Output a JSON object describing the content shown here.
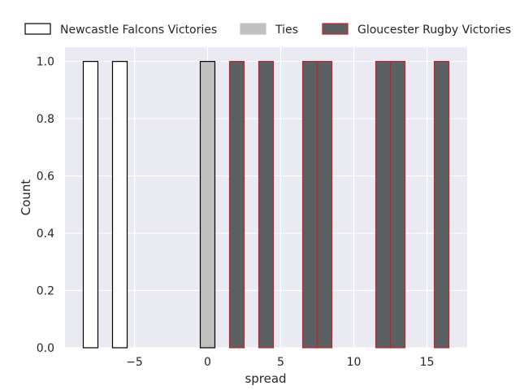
{
  "chart_data": {
    "type": "bar",
    "xlabel": "spread",
    "ylabel": "Count",
    "xlim": [
      -9.75,
      17.75
    ],
    "ylim": [
      0,
      1.05
    ],
    "x_ticks": [
      -5,
      0,
      5,
      10,
      15
    ],
    "x_tick_labels": [
      "−5",
      "0",
      "5",
      "10",
      "15"
    ],
    "y_ticks": [
      0.0,
      0.2,
      0.4,
      0.6,
      0.8,
      1.0
    ],
    "y_tick_labels": [
      "0.0",
      "0.2",
      "0.4",
      "0.6",
      "0.8",
      "1.0"
    ],
    "grid": true,
    "legend_position": "top",
    "bar_width": 1,
    "series": [
      {
        "name": "Newcastle Falcons Victories",
        "fill": "#ffffff",
        "edge": "#000000",
        "x": [
          -8,
          -6
        ],
        "values": [
          1,
          1
        ]
      },
      {
        "name": "Ties",
        "fill": "#c0c0c0",
        "edge": "#000000",
        "x": [
          0
        ],
        "values": [
          1
        ]
      },
      {
        "name": "Gloucester Rugby Victories",
        "fill": "#5b6163",
        "edge": "#c8202a",
        "x": [
          2,
          4,
          7,
          8,
          12,
          13,
          16
        ],
        "values": [
          1,
          1,
          1,
          1,
          1,
          1,
          1
        ]
      }
    ],
    "legend_swatch_fills": [
      "#ffffff",
      "#c0c0c0",
      "#5b6163"
    ],
    "legend_swatch_edges": [
      "#000000",
      "#c0c0c0",
      "#c8202a"
    ],
    "colors": {
      "plot_background": "#eaeaf2",
      "grid": "#ffffff"
    }
  }
}
